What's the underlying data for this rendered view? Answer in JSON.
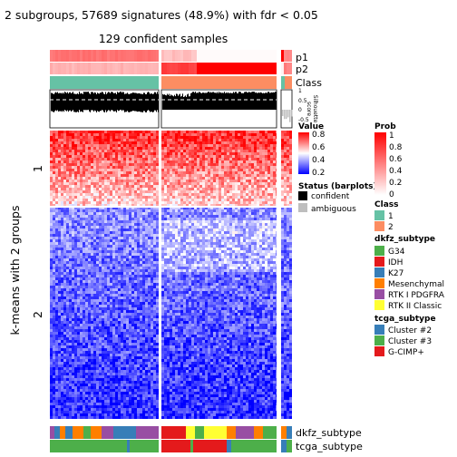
{
  "title": "2 subgroups, 57689 signatures (48.9%) with fdr < 0.05",
  "subtitle": "129 confident samples",
  "row_axis_label": "k-means with 2 groups",
  "row_groups": [
    "1",
    "2"
  ],
  "top_tracks": [
    "p1",
    "p2",
    "Class"
  ],
  "silhouette": {
    "label": "Silhouette\nscore",
    "ticks": [
      "1",
      "0.5",
      "0",
      "-0.5"
    ]
  },
  "bottom_tracks": [
    "dkfz_subtype",
    "tcga_subtype"
  ],
  "legends": {
    "prob": {
      "title": "Prob",
      "ticks": [
        "1",
        "0.8",
        "0.6",
        "0.4",
        "0.2",
        "0"
      ]
    },
    "class": {
      "title": "Class",
      "items": [
        {
          "label": "1",
          "color": "#66c2a5"
        },
        {
          "label": "2",
          "color": "#fc8d62"
        }
      ]
    },
    "dkfz": {
      "title": "dkfz_subtype",
      "items": [
        {
          "label": "G34",
          "color": "#4daf4a"
        },
        {
          "label": "IDH",
          "color": "#e41a1c"
        },
        {
          "label": "K27",
          "color": "#377eb8"
        },
        {
          "label": "Mesenchymal",
          "color": "#ff7f00"
        },
        {
          "label": "RTK I PDGFRA",
          "color": "#984ea3"
        },
        {
          "label": "RTK II Classic",
          "color": "#ffff33"
        }
      ]
    },
    "tcga": {
      "title": "tcga_subtype",
      "items": [
        {
          "label": "Cluster #2",
          "color": "#377eb8"
        },
        {
          "label": "Cluster #3",
          "color": "#4daf4a"
        },
        {
          "label": "G-CIMP+",
          "color": "#e41a1c"
        }
      ]
    },
    "value": {
      "title": "Value",
      "ticks": [
        "0.8",
        "0.6",
        "0.4",
        "0.2"
      ]
    },
    "status": {
      "title": "Status (barplots)",
      "items": [
        {
          "label": "confident",
          "color": "#000000"
        },
        {
          "label": "ambiguous",
          "color": "#bebebe"
        }
      ]
    }
  },
  "colors": {
    "high": "#ff0000",
    "mid": "#ffffff",
    "low": "#0000ff",
    "prob_low": "#ffffff",
    "prob_high": "#ff0000",
    "class1": "#66c2a5",
    "class2": "#fc8d62"
  },
  "chart_data": {
    "type": "heatmap",
    "title": "2 subgroups, 57689 signatures (48.9%) with fdr < 0.05",
    "subtitle": "129 confident samples",
    "ylabel": "k-means with 2 groups",
    "row_groups": [
      "1",
      "2"
    ],
    "column_groups": [
      "1",
      "2",
      "ambiguous"
    ],
    "value_range": [
      0.2,
      0.8
    ],
    "legend_position": "right"
  }
}
